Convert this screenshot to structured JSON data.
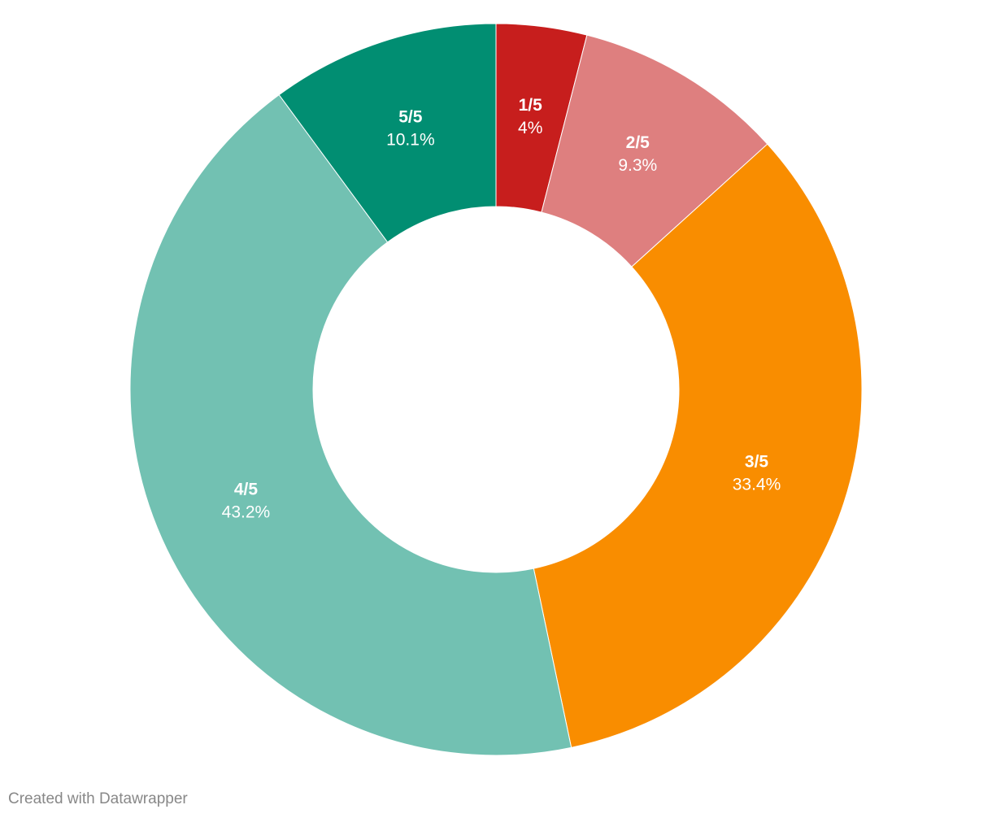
{
  "chart_data": {
    "type": "donut",
    "categories": [
      "1/5",
      "2/5",
      "3/5",
      "4/5",
      "5/5"
    ],
    "values": [
      4,
      9.3,
      33.4,
      43.2,
      10.1
    ],
    "value_labels": [
      "4%",
      "9.3%",
      "33.4%",
      "43.2%",
      "10.1%"
    ],
    "colors": [
      "#c71e1d",
      "#de7f7f",
      "#f98d00",
      "#72c1b2",
      "#018e72"
    ]
  },
  "footer": "Created with Datawrapper"
}
